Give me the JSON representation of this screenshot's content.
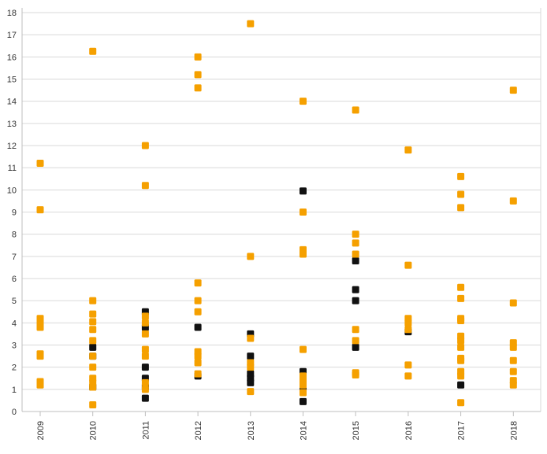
{
  "chart_data": {
    "type": "scatter",
    "title": "",
    "xlabel": "",
    "ylabel": "",
    "categories": [
      "2009",
      "2010",
      "2011",
      "2012",
      "2013",
      "2014",
      "2015",
      "2016",
      "2017",
      "2018"
    ],
    "ylim": [
      0,
      18
    ],
    "yticks": [
      "0",
      "1",
      "2",
      "3",
      "4",
      "5",
      "6",
      "7",
      "8",
      "9",
      "10",
      "11",
      "12",
      "13",
      "14",
      "15",
      "16",
      "17",
      "18"
    ],
    "grid": true,
    "series": [
      {
        "name": "black",
        "color": "#111111",
        "points": [
          {
            "x": "2010",
            "y": 2.9
          },
          {
            "x": "2010",
            "y": 2.5
          },
          {
            "x": "2010",
            "y": 1.1
          },
          {
            "x": "2011",
            "y": 4.5
          },
          {
            "x": "2011",
            "y": 3.8
          },
          {
            "x": "2011",
            "y": 2.0
          },
          {
            "x": "2011",
            "y": 1.5
          },
          {
            "x": "2011",
            "y": 1.1
          },
          {
            "x": "2011",
            "y": 0.6
          },
          {
            "x": "2012",
            "y": 3.8
          },
          {
            "x": "2012",
            "y": 1.6
          },
          {
            "x": "2013",
            "y": 3.5
          },
          {
            "x": "2013",
            "y": 2.5
          },
          {
            "x": "2013",
            "y": 1.7
          },
          {
            "x": "2013",
            "y": 1.5
          },
          {
            "x": "2013",
            "y": 1.3
          },
          {
            "x": "2014",
            "y": 9.95
          },
          {
            "x": "2014",
            "y": 1.8
          },
          {
            "x": "2014",
            "y": 1.1
          },
          {
            "x": "2014",
            "y": 0.45
          },
          {
            "x": "2015",
            "y": 6.8
          },
          {
            "x": "2015",
            "y": 5.5
          },
          {
            "x": "2015",
            "y": 5.0
          },
          {
            "x": "2015",
            "y": 2.9
          },
          {
            "x": "2016",
            "y": 3.6
          },
          {
            "x": "2017",
            "y": 1.2
          }
        ]
      },
      {
        "name": "orange",
        "color": "#f5a000",
        "points": [
          {
            "x": "2009",
            "y": 11.2
          },
          {
            "x": "2009",
            "y": 9.1
          },
          {
            "x": "2009",
            "y": 4.2
          },
          {
            "x": "2009",
            "y": 4.0
          },
          {
            "x": "2009",
            "y": 3.8
          },
          {
            "x": "2009",
            "y": 2.6
          },
          {
            "x": "2009",
            "y": 2.5
          },
          {
            "x": "2009",
            "y": 1.35
          },
          {
            "x": "2009",
            "y": 1.2
          },
          {
            "x": "2010",
            "y": 16.25
          },
          {
            "x": "2010",
            "y": 5.0
          },
          {
            "x": "2010",
            "y": 4.4
          },
          {
            "x": "2010",
            "y": 4.05
          },
          {
            "x": "2010",
            "y": 3.7
          },
          {
            "x": "2010",
            "y": 3.2
          },
          {
            "x": "2010",
            "y": 2.5
          },
          {
            "x": "2010",
            "y": 2.0
          },
          {
            "x": "2010",
            "y": 1.5
          },
          {
            "x": "2010",
            "y": 1.3
          },
          {
            "x": "2010",
            "y": 1.1
          },
          {
            "x": "2010",
            "y": 0.3
          },
          {
            "x": "2011",
            "y": 12.0
          },
          {
            "x": "2011",
            "y": 10.2
          },
          {
            "x": "2011",
            "y": 4.3
          },
          {
            "x": "2011",
            "y": 4.0
          },
          {
            "x": "2011",
            "y": 3.5
          },
          {
            "x": "2011",
            "y": 2.8
          },
          {
            "x": "2011",
            "y": 2.5
          },
          {
            "x": "2011",
            "y": 1.3
          },
          {
            "x": "2011",
            "y": 1.0
          },
          {
            "x": "2012",
            "y": 16.0
          },
          {
            "x": "2012",
            "y": 15.2
          },
          {
            "x": "2012",
            "y": 14.6
          },
          {
            "x": "2012",
            "y": 5.8
          },
          {
            "x": "2012",
            "y": 5.0
          },
          {
            "x": "2012",
            "y": 4.5
          },
          {
            "x": "2012",
            "y": 2.7
          },
          {
            "x": "2012",
            "y": 2.5
          },
          {
            "x": "2012",
            "y": 2.2
          },
          {
            "x": "2012",
            "y": 1.7
          },
          {
            "x": "2013",
            "y": 17.5
          },
          {
            "x": "2013",
            "y": 7.0
          },
          {
            "x": "2013",
            "y": 3.3
          },
          {
            "x": "2013",
            "y": 2.2
          },
          {
            "x": "2013",
            "y": 2.0
          },
          {
            "x": "2013",
            "y": 0.9
          },
          {
            "x": "2014",
            "y": 14.0
          },
          {
            "x": "2014",
            "y": 9.0
          },
          {
            "x": "2014",
            "y": 7.3
          },
          {
            "x": "2014",
            "y": 7.1
          },
          {
            "x": "2014",
            "y": 2.8
          },
          {
            "x": "2014",
            "y": 1.6
          },
          {
            "x": "2014",
            "y": 1.4
          },
          {
            "x": "2014",
            "y": 1.2
          },
          {
            "x": "2014",
            "y": 0.85
          },
          {
            "x": "2015",
            "y": 13.6
          },
          {
            "x": "2015",
            "y": 8.0
          },
          {
            "x": "2015",
            "y": 7.6
          },
          {
            "x": "2015",
            "y": 7.1
          },
          {
            "x": "2015",
            "y": 3.7
          },
          {
            "x": "2015",
            "y": 3.2
          },
          {
            "x": "2015",
            "y": 1.75
          },
          {
            "x": "2015",
            "y": 1.65
          },
          {
            "x": "2016",
            "y": 11.8
          },
          {
            "x": "2016",
            "y": 6.6
          },
          {
            "x": "2016",
            "y": 4.2
          },
          {
            "x": "2016",
            "y": 4.0
          },
          {
            "x": "2016",
            "y": 3.7
          },
          {
            "x": "2016",
            "y": 2.1
          },
          {
            "x": "2016",
            "y": 1.6
          },
          {
            "x": "2017",
            "y": 10.6
          },
          {
            "x": "2017",
            "y": 9.8
          },
          {
            "x": "2017",
            "y": 9.2
          },
          {
            "x": "2017",
            "y": 5.6
          },
          {
            "x": "2017",
            "y": 5.1
          },
          {
            "x": "2017",
            "y": 4.2
          },
          {
            "x": "2017",
            "y": 4.1
          },
          {
            "x": "2017",
            "y": 3.4
          },
          {
            "x": "2017",
            "y": 3.2
          },
          {
            "x": "2017",
            "y": 2.9
          },
          {
            "x": "2017",
            "y": 2.4
          },
          {
            "x": "2017",
            "y": 2.3
          },
          {
            "x": "2017",
            "y": 1.8
          },
          {
            "x": "2017",
            "y": 1.6
          },
          {
            "x": "2017",
            "y": 0.4
          },
          {
            "x": "2018",
            "y": 14.5
          },
          {
            "x": "2018",
            "y": 9.5
          },
          {
            "x": "2018",
            "y": 4.9
          },
          {
            "x": "2018",
            "y": 3.1
          },
          {
            "x": "2018",
            "y": 2.9
          },
          {
            "x": "2018",
            "y": 2.3
          },
          {
            "x": "2018",
            "y": 1.8
          },
          {
            "x": "2018",
            "y": 1.4
          },
          {
            "x": "2018",
            "y": 1.2
          }
        ]
      }
    ]
  }
}
